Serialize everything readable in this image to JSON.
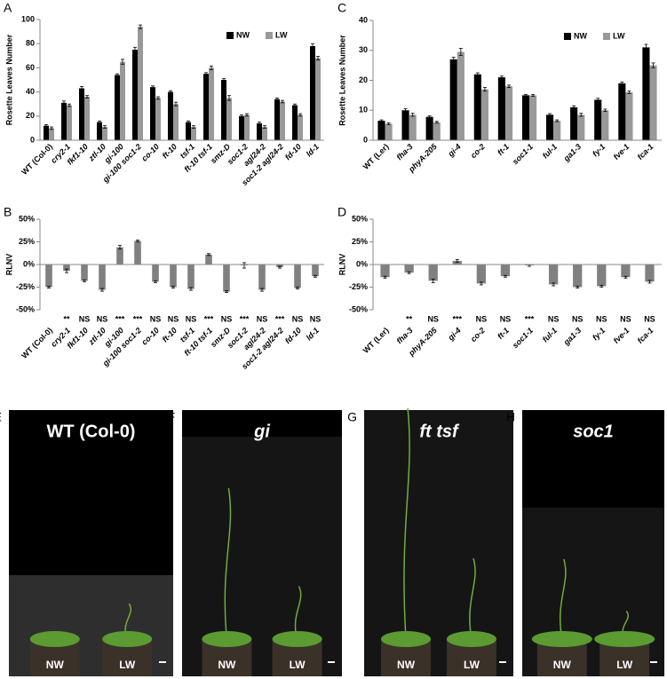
{
  "chart_data": [
    {
      "type": "bar",
      "panel": "A",
      "ylabel": "Rosette Leaves Number",
      "categories": [
        "WT (Col-0)",
        "cry2-1",
        "fkf1-10",
        "ztl-10",
        "gi-100",
        "gi-100 soc1-2",
        "co-10",
        "ft-10",
        "tsf-1",
        "ft-10 tsf-1",
        "smz-D",
        "soc1-2",
        "agl24-2",
        "soc1-2 agl24-2",
        "fd-10",
        "ld-1"
      ],
      "series": [
        {
          "name": "NW",
          "color": "#000000",
          "values": [
            12,
            31,
            43,
            15,
            54,
            75,
            44,
            40,
            15,
            55,
            50,
            20,
            14,
            34,
            29,
            78
          ],
          "errors": [
            1,
            1.5,
            1.5,
            1,
            1,
            2,
            1,
            1,
            1,
            1,
            1,
            1,
            1,
            1,
            1,
            2
          ]
        },
        {
          "name": "LW",
          "color": "#999999",
          "values": [
            10,
            29,
            36,
            11,
            65,
            94,
            35,
            30,
            11,
            60,
            35,
            21,
            11,
            32,
            21,
            68
          ],
          "errors": [
            1,
            1,
            1,
            1,
            2,
            1.5,
            1,
            1.5,
            1,
            1.5,
            2,
            1,
            1,
            1,
            1,
            1.5
          ]
        }
      ],
      "ylim": [
        0,
        100
      ],
      "yticks": [
        0,
        20,
        40,
        60,
        80,
        100
      ],
      "legend": "top-right"
    },
    {
      "type": "bar",
      "panel": "B",
      "ylabel": "RLNV",
      "categories": [
        "WT (Col-0)",
        "cry2-1",
        "fkf1-10",
        "ztl-10",
        "gi-100",
        "gi-100 soc1-2",
        "co-10",
        "ft-10",
        "tsf-1",
        "ft-10 tsf-1",
        "smz-D",
        "soc1-2",
        "agl24-2",
        "soc1-2 agl24-2",
        "fd-10",
        "ld-1"
      ],
      "series": [
        {
          "color": "#808080",
          "values": [
            -25,
            -7,
            -18,
            -28,
            19,
            26,
            -19,
            -25,
            -27,
            11,
            -30,
            -1,
            -28,
            -3,
            -26,
            -13
          ],
          "errors": [
            1,
            2,
            1,
            1.5,
            2,
            1,
            1,
            1,
            1.5,
            1,
            1,
            3,
            1.5,
            1,
            1,
            1
          ]
        }
      ],
      "significance": [
        null,
        "**",
        "NS",
        "NS",
        "***",
        "***",
        "NS",
        "NS",
        "NS",
        "***",
        "NS",
        "***",
        "NS",
        "***",
        "NS",
        "NS"
      ],
      "ylim": [
        -50,
        50
      ],
      "yticks": [
        {
          "value": -50,
          "label": "-50%"
        },
        {
          "value": -25,
          "label": "-25%"
        },
        {
          "value": 0,
          "label": "0%"
        },
        {
          "value": 25,
          "label": "25%"
        },
        {
          "value": 50,
          "label": "50%"
        }
      ]
    },
    {
      "type": "bar",
      "panel": "C",
      "ylabel": "Rosette Leaves Number",
      "categories": [
        "WT (Ler)",
        "fha-3",
        "phyA-205",
        "gi-4",
        "co-2",
        "ft-1",
        "soc1-1",
        "ful-1",
        "ga1-3",
        "fy-1",
        "fve-1",
        "fca-1"
      ],
      "series": [
        {
          "name": "NW",
          "color": "#000000",
          "values": [
            6.5,
            10,
            7.8,
            27,
            22,
            21,
            15,
            8.5,
            11,
            13.5,
            19,
            31
          ],
          "errors": [
            0.3,
            0.5,
            0.3,
            0.7,
            0.5,
            0.4,
            0.3,
            0.4,
            0.5,
            0.5,
            0.4,
            1
          ]
        },
        {
          "name": "LW",
          "color": "#999999",
          "values": [
            5.5,
            8.5,
            6,
            29.5,
            17,
            18,
            15,
            6.5,
            8.5,
            10,
            16,
            25
          ],
          "errors": [
            0.3,
            0.5,
            0.3,
            1.2,
            0.6,
            0.4,
            0.3,
            0.3,
            0.5,
            0.4,
            0.4,
            0.8
          ]
        }
      ],
      "ylim": [
        0,
        40
      ],
      "yticks": [
        0,
        10,
        20,
        30,
        40
      ],
      "legend": "top-right"
    },
    {
      "type": "bar",
      "panel": "D",
      "ylabel": "RLNV",
      "categories": [
        "WT (Ler)",
        "fha-3",
        "phyA-205",
        "gi-4",
        "co-2",
        "ft-1",
        "soc1-1",
        "ful-1",
        "ga1-3",
        "fy-1",
        "fve-1",
        "fca-1"
      ],
      "series": [
        {
          "color": "#808080",
          "values": [
            -14,
            -9,
            -18,
            4,
            -21,
            -13,
            -1,
            -22,
            -25,
            -24,
            -14,
            -19
          ],
          "errors": [
            1,
            1,
            2,
            1.5,
            1.5,
            1,
            1,
            1.5,
            1,
            1,
            1,
            1.5
          ]
        }
      ],
      "significance": [
        null,
        "**",
        "NS",
        "***",
        "NS",
        "NS",
        "***",
        "NS",
        "NS",
        "NS",
        "NS",
        "NS"
      ],
      "ylim": [
        -50,
        50
      ],
      "yticks": [
        {
          "value": -50,
          "label": "-50%"
        },
        {
          "value": -25,
          "label": "-25%"
        },
        {
          "value": 0,
          "label": "0%"
        },
        {
          "value": 25,
          "label": "25%"
        },
        {
          "value": 50,
          "label": "50%"
        }
      ]
    }
  ],
  "photos": [
    {
      "panel": "E",
      "title": "WT (Col-0)",
      "labels": [
        "NW",
        "LW"
      ]
    },
    {
      "panel": "F",
      "title": "gi",
      "labels": [
        "NW",
        "LW"
      ]
    },
    {
      "panel": "G",
      "title": "ft  tsf",
      "labels": [
        "NW",
        "LW"
      ]
    },
    {
      "panel": "H",
      "title": "soc1",
      "labels": [
        "NW",
        "LW"
      ]
    }
  ]
}
